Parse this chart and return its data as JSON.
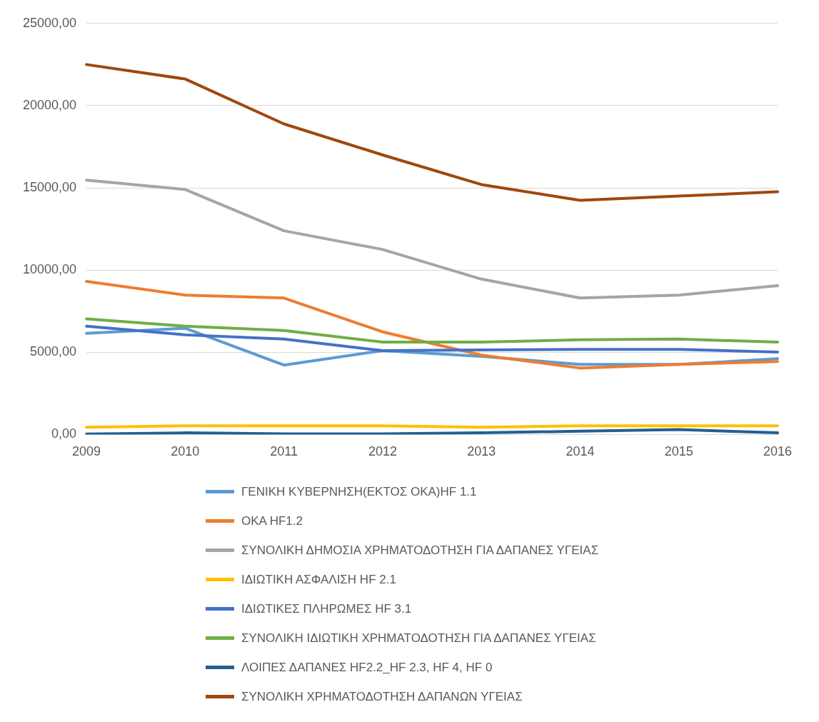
{
  "chart_data": {
    "type": "line",
    "categories": [
      "2009",
      "2010",
      "2011",
      "2012",
      "2013",
      "2014",
      "2015",
      "2016"
    ],
    "ylim": [
      0,
      25000
    ],
    "yticks": [
      {
        "value": 0,
        "label": "0,00"
      },
      {
        "value": 5000,
        "label": "5000,00"
      },
      {
        "value": 10000,
        "label": "10000,00"
      },
      {
        "value": 15000,
        "label": "15000,00"
      },
      {
        "value": 20000,
        "label": "20000,00"
      },
      {
        "value": 25000,
        "label": "25000,00"
      }
    ],
    "grid": "y",
    "legend": "bottom",
    "marker": "none",
    "line_style": "solid",
    "series": [
      {
        "name": "ΓΕΝΙΚΗ ΚΥΒΕΡΝΗΣΗ(ΕΚΤΟΣ ΟΚΑ)HF  1.1",
        "color": "#5b9bd5",
        "values": [
          6150,
          6460,
          4220,
          5100,
          4750,
          4260,
          4260,
          4610
        ]
      },
      {
        "name": "ΟΚΑ HF1.2",
        "color": "#ed7d31",
        "values": [
          9310,
          8480,
          8300,
          6240,
          4830,
          4040,
          4260,
          4440
        ]
      },
      {
        "name": "ΣΥΝΟΛΙΚΗ ΔΗΜΟΣΙΑ ΧΡΗΜΑΤΟΔΟΤΗΣΗ  ΓΙΑ ΔΑΠΑΝΕΣ  ΥΓΕΙΑΣ",
        "color": "#a5a5a5",
        "values": [
          15470,
          14900,
          12390,
          11250,
          9450,
          8300,
          8480,
          9050
        ]
      },
      {
        "name": "ΙΔΙΩΤΙΚΗ ΑΣΦΑΛΙΣΗ  HF 2.1",
        "color": "#ffc000",
        "values": [
          440,
          530,
          530,
          530,
          440,
          530,
          530,
          530
        ]
      },
      {
        "name": "ΙΔΙΩΤΙΚΕΣ ΠΛΗΡΩΜΕΣ HF 3.1",
        "color": "#4472c4",
        "values": [
          6590,
          6060,
          5800,
          5100,
          5140,
          5180,
          5180,
          5010
        ]
      },
      {
        "name": "ΣΥΝΟΛΙΚΗ ΙΔΙΩΤΙΚΗ ΧΡΗΜΑΤΟΔΟΤΗΣΗ  ΓΙΑ ΔΑΠΑΝΕΣ  ΥΓΕΙΑΣ",
        "color": "#70ad47",
        "values": [
          7030,
          6590,
          6330,
          5620,
          5620,
          5760,
          5800,
          5620
        ]
      },
      {
        "name": "ΛΟΙΠΕΣ ΔΑΠΑΝΕΣ  HF2.2_HF 2.3, HF 4, HF 0",
        "color": "#255e91",
        "values": [
          30,
          100,
          40,
          40,
          100,
          200,
          300,
          100
        ]
      },
      {
        "name": "ΣΥΝΟΛΙΚΗ ΧΡΗΜΑΤΟΔΟΤΗΣΗ  ΔΑΠΑΝΩΝ ΥΓΕΙΑΣ",
        "color": "#9e480e",
        "values": [
          22500,
          21620,
          18890,
          17000,
          15200,
          14240,
          14500,
          14760
        ]
      }
    ]
  }
}
